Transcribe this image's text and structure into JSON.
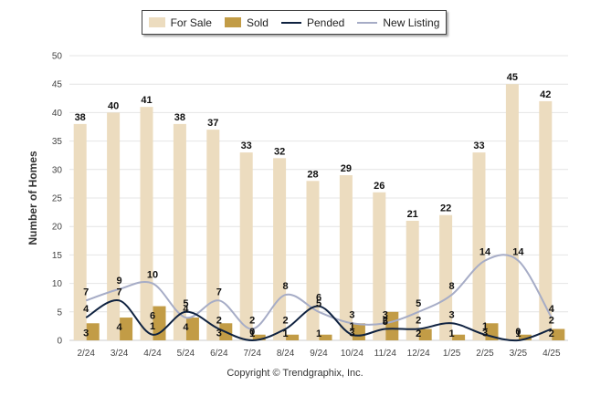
{
  "chart_data": {
    "type": "bar",
    "categories": [
      "2/24",
      "3/24",
      "4/24",
      "5/24",
      "6/24",
      "7/24",
      "8/24",
      "9/24",
      "10/24",
      "11/24",
      "12/24",
      "1/25",
      "2/25",
      "3/25",
      "4/25"
    ],
    "series": [
      {
        "name": "For Sale",
        "kind": "bar",
        "color": "#ecdcbf",
        "values": [
          38,
          40,
          41,
          38,
          37,
          33,
          32,
          28,
          29,
          26,
          21,
          22,
          33,
          45,
          42
        ]
      },
      {
        "name": "Sold",
        "kind": "bar",
        "color": "#c29c46",
        "values": [
          3,
          4,
          6,
          4,
          3,
          1,
          1,
          1,
          3,
          5,
          2,
          1,
          3,
          1,
          2
        ]
      },
      {
        "name": "Pended",
        "kind": "line",
        "color": "#0f2240",
        "values": [
          4,
          7,
          1,
          5,
          2,
          0,
          2,
          6,
          1,
          2,
          2,
          3,
          1,
          0,
          2
        ]
      },
      {
        "name": "New Listing",
        "kind": "line",
        "color": "#a6acc6",
        "values": [
          7,
          9,
          10,
          4,
          7,
          2,
          8,
          5,
          3,
          3,
          5,
          8,
          14,
          14,
          4
        ]
      }
    ],
    "ylabel": "Number of Homes",
    "ylim": [
      0,
      50
    ],
    "yticks": [
      0,
      5,
      10,
      15,
      20,
      25,
      30,
      35,
      40,
      45,
      50
    ],
    "grid": true,
    "legend_position": "top-center"
  },
  "footer": {
    "copyright": "Copyright © Trendgraphix, Inc."
  }
}
